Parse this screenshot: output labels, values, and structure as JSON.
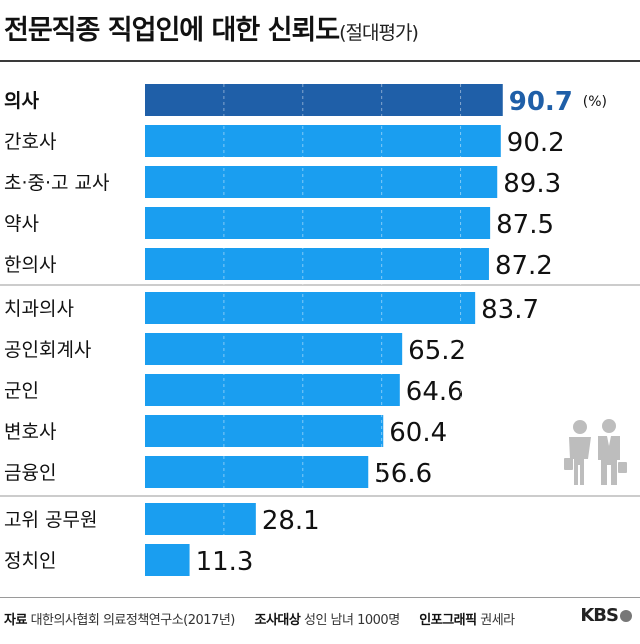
{
  "header": {
    "title": "전문직종 직업인에 대한 신뢰도",
    "subtitle": "(절대평가)"
  },
  "chart_data": {
    "type": "bar",
    "orientation": "horizontal",
    "title": "전문직종 직업인에 대한 신뢰도",
    "subtitle": "(절대평가)",
    "unit": "(%)",
    "categories": [
      "의사",
      "간호사",
      "초·중·고 교사",
      "약사",
      "한의사",
      "치과의사",
      "공인회계사",
      "군인",
      "변호사",
      "금융인",
      "고위 공무원",
      "정치인"
    ],
    "values": [
      90.7,
      90.2,
      89.3,
      87.5,
      87.2,
      83.7,
      65.2,
      64.6,
      60.4,
      56.6,
      28.1,
      11.3
    ],
    "value_labels": [
      "90.7",
      "90.2",
      "89.3",
      "87.5",
      "87.2",
      "83.7",
      "65.2",
      "64.6",
      "60.4",
      "56.6",
      "28.1",
      "11.3"
    ],
    "highlight_index": 0,
    "groups": [
      [
        0,
        4
      ],
      [
        5,
        9
      ],
      [
        10,
        11
      ]
    ],
    "xlim": [
      0,
      100
    ],
    "grid": true,
    "colors": {
      "bar": "#1a9ef0",
      "highlight": "#1f5fa8",
      "highlight_text": "#1f5fa8"
    }
  },
  "footer": {
    "source_label": "자료",
    "source_value": "대한의사협회 의료정책연구소(2017년)",
    "survey_label": "조사대상",
    "survey_value": "성인 남녀 1000명",
    "credit_label": "인포그래픽",
    "credit_value": "권세라",
    "logo": "KBS"
  },
  "icons": {
    "people": "business-people-icon"
  }
}
